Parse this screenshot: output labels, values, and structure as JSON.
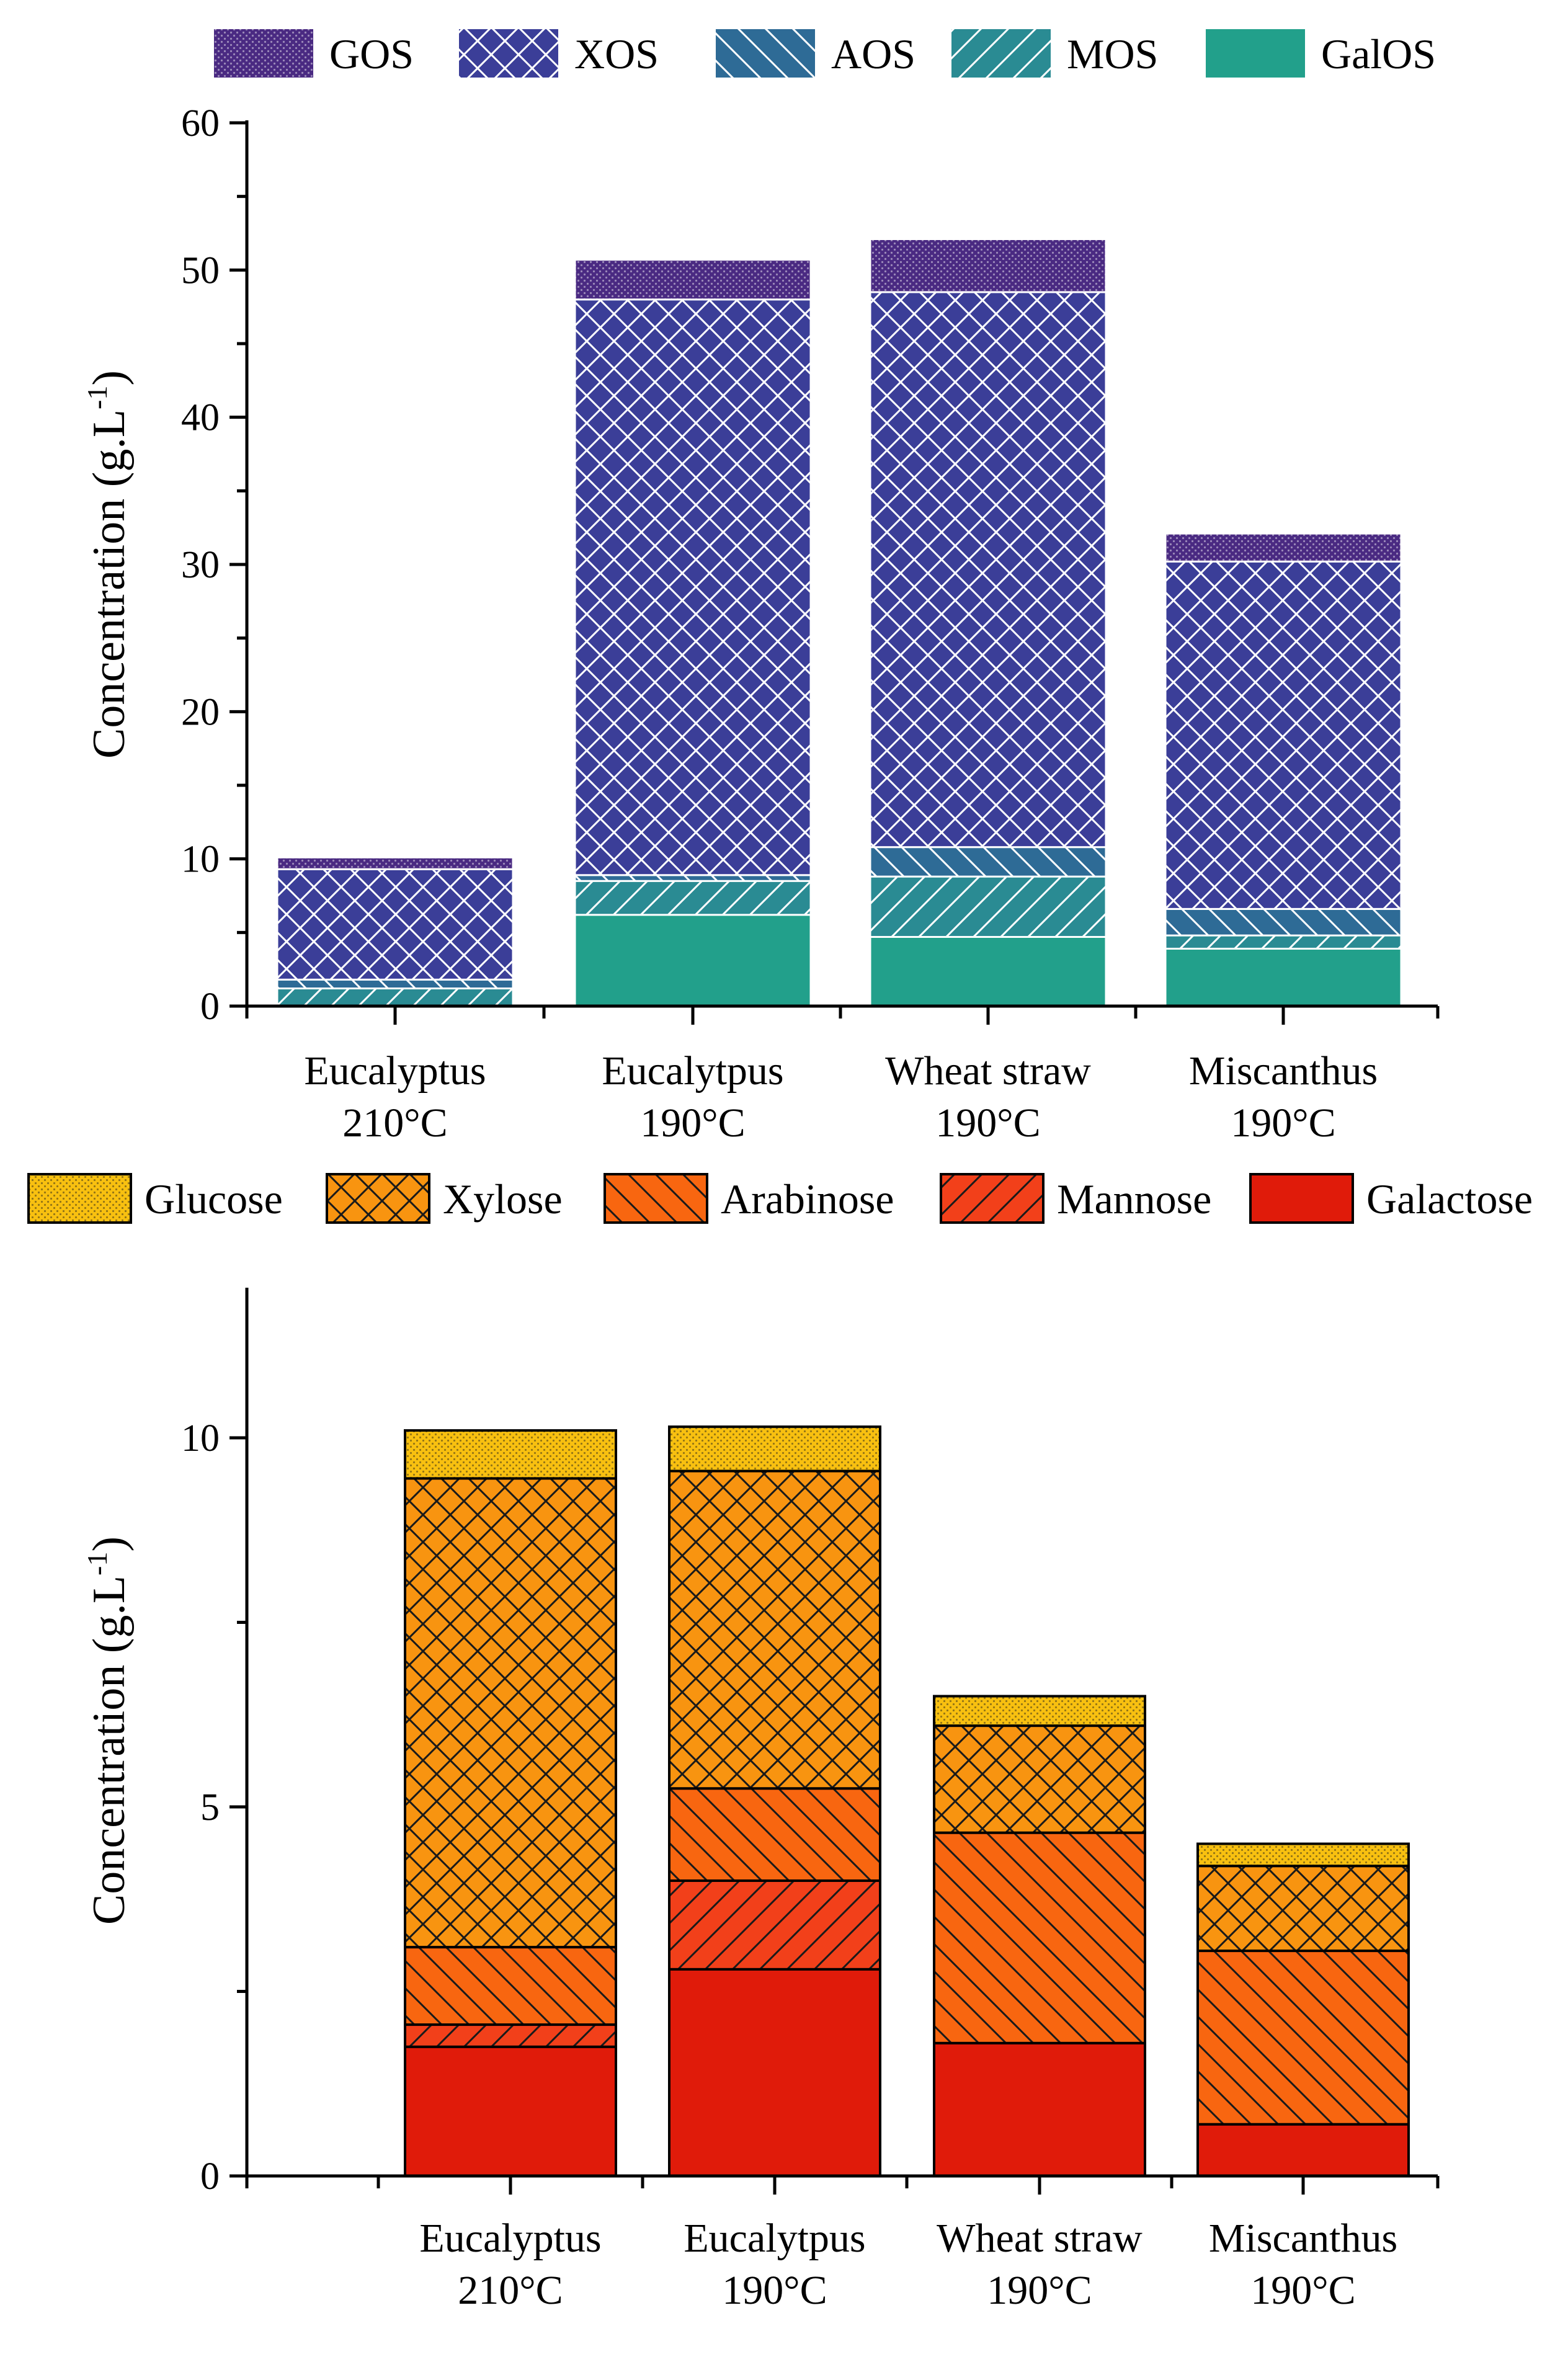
{
  "chart_data": [
    {
      "type": "bar",
      "stacked": true,
      "title": "",
      "xlabel": "",
      "ylabel": "Concentration (g.L-1)",
      "ylabel_parts": {
        "base": "Concentration (g.L",
        "sup": "-1",
        "close": ")"
      },
      "ylim": [
        0,
        60
      ],
      "yticks": [
        0,
        10,
        20,
        30,
        40,
        50,
        60
      ],
      "categories": [
        {
          "line1": "Eucalyptus",
          "line2": "210°C"
        },
        {
          "line1": "Eucalytpus",
          "line2": "190°C"
        },
        {
          "line1": "Wheat straw",
          "line2": "190°C"
        },
        {
          "line1": "Miscanthus",
          "line2": "190°C"
        }
      ],
      "legend_order": [
        "GOS",
        "XOS",
        "AOS",
        "MOS",
        "GalOS"
      ],
      "series": [
        {
          "name": "GalOS",
          "color": "#22A08B",
          "pattern": "solid",
          "values": [
            0.0,
            6.2,
            4.7,
            3.9
          ]
        },
        {
          "name": "MOS",
          "color": "#2A8B93",
          "pattern": "diag-fwd",
          "values": [
            1.2,
            2.3,
            4.1,
            0.9
          ]
        },
        {
          "name": "AOS",
          "color": "#2E6B96",
          "pattern": "diag-back",
          "values": [
            0.6,
            0.4,
            2.0,
            1.8
          ]
        },
        {
          "name": "XOS",
          "color": "#3B3E98",
          "pattern": "crosshatch",
          "values": [
            7.5,
            39.1,
            37.7,
            23.6
          ]
        },
        {
          "name": "GOS",
          "color": "#4A2A82",
          "pattern": "dots",
          "values": [
            0.8,
            2.7,
            3.6,
            1.9
          ]
        }
      ]
    },
    {
      "type": "bar",
      "stacked": true,
      "title": "",
      "xlabel": "",
      "ylabel": "Concentration (g.L-1)",
      "ylabel_parts": {
        "base": "Concentration (g.L",
        "sup": "-1",
        "close": ")"
      },
      "ylim": [
        0,
        12
      ],
      "yticks": [
        0,
        5,
        10
      ],
      "categories": [
        {
          "line1": "Eucalyptus",
          "line2": "210°C"
        },
        {
          "line1": "Eucalytpus",
          "line2": "190°C"
        },
        {
          "line1": "Wheat straw",
          "line2": "190°C"
        },
        {
          "line1": "Miscanthus",
          "line2": "190°C"
        }
      ],
      "legend_order": [
        "Glucose",
        "Xylose",
        "Arabinose",
        "Mannose",
        "Galactose"
      ],
      "series": [
        {
          "name": "Galactose",
          "color": "#E01B0A",
          "pattern": "solid",
          "values": [
            1.75,
            2.8,
            1.8,
            0.7
          ]
        },
        {
          "name": "Mannose",
          "color": "#F2401A",
          "pattern": "diag-fwd",
          "values": [
            0.3,
            1.2,
            0.0,
            0.0
          ]
        },
        {
          "name": "Arabinose",
          "color": "#F86610",
          "pattern": "diag-back",
          "values": [
            1.05,
            1.25,
            2.85,
            2.35
          ]
        },
        {
          "name": "Xylose",
          "color": "#F89410",
          "pattern": "crosshatch",
          "values": [
            6.35,
            4.3,
            1.45,
            1.15
          ]
        },
        {
          "name": "Glucose",
          "color": "#F8C010",
          "pattern": "dots",
          "values": [
            0.65,
            0.6,
            0.4,
            0.3
          ]
        }
      ]
    }
  ]
}
